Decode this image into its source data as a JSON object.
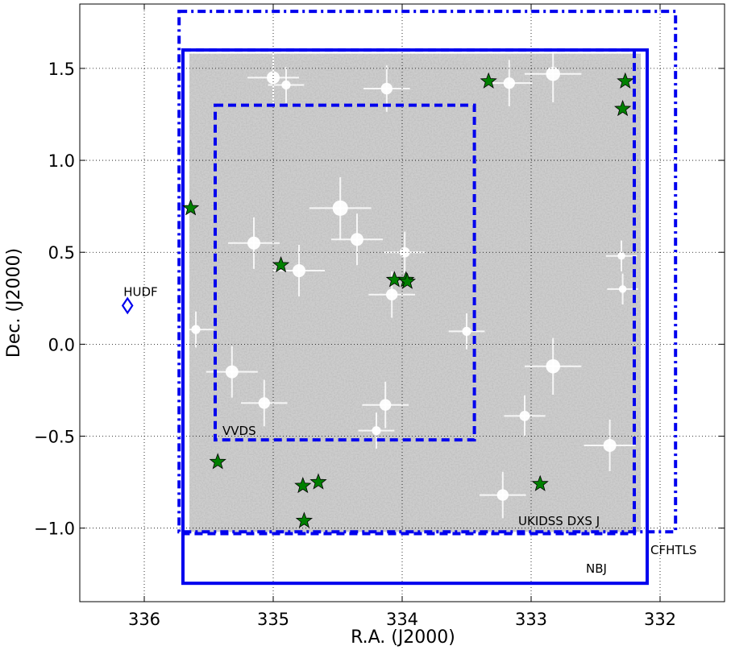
{
  "chart_data": {
    "type": "scatter",
    "xlabel": "R.A. (J2000)",
    "ylabel": "Dec. (J2000)",
    "xlim": [
      336.5,
      331.5
    ],
    "ylim": [
      -1.4,
      1.85
    ],
    "x_ticks": [
      336,
      335,
      334,
      333,
      332
    ],
    "x_tick_labels": [
      "336",
      "335",
      "334",
      "333",
      "332"
    ],
    "y_ticks": [
      1.5,
      1.0,
      0.5,
      0.0,
      -0.5,
      -1.0
    ],
    "y_tick_labels": [
      "1.5",
      "1.0",
      "0.5",
      "0.0",
      "−0.5",
      "−1.0"
    ],
    "grid": true,
    "surveys": [
      {
        "name": "NBJ",
        "ra_min": 332.1,
        "ra_max": 335.7,
        "dec_min": -1.3,
        "dec_max": 1.6,
        "style": "solid",
        "color": "#0000ee"
      },
      {
        "name": "UKIDSS DXS J",
        "ra_min": 332.2,
        "ra_max": 335.7,
        "dec_min": -1.03,
        "dec_max": 1.6,
        "style": "dashed",
        "color": "#0000ee"
      },
      {
        "name": "VVDS",
        "ra_min": 333.44,
        "ra_max": 335.45,
        "dec_min": -0.52,
        "dec_max": 1.3,
        "style": "dashed",
        "color": "#0000ee"
      },
      {
        "name": "CFHTLS",
        "ra_min": 331.88,
        "ra_max": 335.73,
        "dec_min": -1.02,
        "dec_max": 1.81,
        "style": "dashdot",
        "color": "#0000ee"
      }
    ],
    "hudf": {
      "name": "HUDF",
      "ra": 336.13,
      "dec": 0.21
    },
    "green_stars": [
      {
        "ra": 333.33,
        "dec": 1.43
      },
      {
        "ra": 332.27,
        "dec": 1.43
      },
      {
        "ra": 332.29,
        "dec": 1.28
      },
      {
        "ra": 335.64,
        "dec": 0.74
      },
      {
        "ra": 334.94,
        "dec": 0.43
      },
      {
        "ra": 334.06,
        "dec": 0.35
      },
      {
        "ra": 333.97,
        "dec": 0.35
      },
      {
        "ra": 333.96,
        "dec": 0.34
      },
      {
        "ra": 335.43,
        "dec": -0.64
      },
      {
        "ra": 334.77,
        "dec": -0.77
      },
      {
        "ra": 334.65,
        "dec": -0.75
      },
      {
        "ra": 334.76,
        "dec": -0.96
      },
      {
        "ra": 332.93,
        "dec": -0.76
      }
    ],
    "image_region": {
      "ra_min": 332.15,
      "ra_max": 335.65,
      "dec_min": -1.02,
      "dec_max": 1.58
    },
    "bright_stars": [
      {
        "ra": 335.0,
        "dec": 1.45,
        "s": 1.0
      },
      {
        "ra": 334.9,
        "dec": 1.41,
        "s": 0.7
      },
      {
        "ra": 334.12,
        "dec": 1.39,
        "s": 0.9
      },
      {
        "ra": 333.17,
        "dec": 1.42,
        "s": 0.9
      },
      {
        "ra": 332.83,
        "dec": 1.47,
        "s": 1.1
      },
      {
        "ra": 334.48,
        "dec": 0.74,
        "s": 1.2
      },
      {
        "ra": 335.15,
        "dec": 0.55,
        "s": 1.0
      },
      {
        "ra": 334.35,
        "dec": 0.57,
        "s": 1.0
      },
      {
        "ra": 334.8,
        "dec": 0.4,
        "s": 1.0
      },
      {
        "ra": 333.98,
        "dec": 0.5,
        "s": 0.8
      },
      {
        "ra": 334.08,
        "dec": 0.27,
        "s": 0.9
      },
      {
        "ra": 335.6,
        "dec": 0.08,
        "s": 0.7
      },
      {
        "ra": 335.32,
        "dec": -0.15,
        "s": 1.0
      },
      {
        "ra": 335.07,
        "dec": -0.32,
        "s": 0.9
      },
      {
        "ra": 334.13,
        "dec": -0.33,
        "s": 0.9
      },
      {
        "ra": 334.2,
        "dec": -0.47,
        "s": 0.7
      },
      {
        "ra": 333.5,
        "dec": 0.07,
        "s": 0.7
      },
      {
        "ra": 333.05,
        "dec": -0.39,
        "s": 0.8
      },
      {
        "ra": 332.83,
        "dec": -0.12,
        "s": 1.1
      },
      {
        "ra": 332.39,
        "dec": -0.55,
        "s": 1.0
      },
      {
        "ra": 333.22,
        "dec": -0.82,
        "s": 0.9
      },
      {
        "ra": 332.3,
        "dec": 0.48,
        "s": 0.6
      },
      {
        "ra": 332.29,
        "dec": 0.3,
        "s": 0.6
      }
    ]
  }
}
